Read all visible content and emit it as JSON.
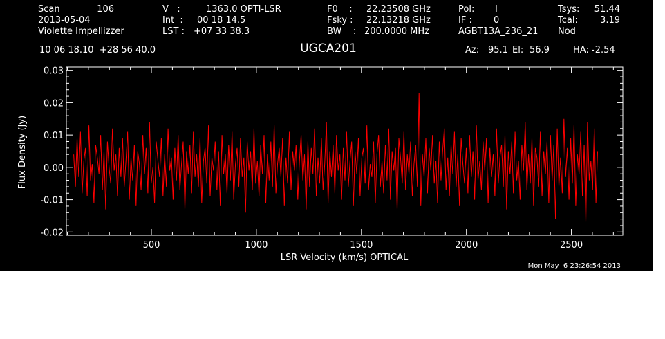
{
  "header": {
    "scan_label": "Scan",
    "scan_value": "106",
    "date": "2013-05-04",
    "observer": "Violette Impellizzer",
    "v_label": "V   :",
    "v_value": "1363.0 OPTI-LSR",
    "int_label": "Int  :",
    "int_value": "00 18 14.5",
    "lst_label": "LST :",
    "lst_value": "+07 33 38.3",
    "f0_label": "F0    :",
    "f0_value": "22.23508 GHz",
    "fsky_label": "Fsky :",
    "fsky_value": "22.13218 GHz",
    "bw_label": "BW    :",
    "bw_value": "200.0000 MHz",
    "pol_label": "Pol:",
    "pol_value": "I",
    "if_label": "IF :",
    "if_value": "0",
    "project": "AGBT13A_236_21",
    "tsys_label": "Tsys:",
    "tsys_value": "51.44",
    "tcal_label": "Tcal:",
    "tcal_value": "3.19",
    "mode": "Nod",
    "coords": "10 06 18.10  +28 56 40.0",
    "az_label": "Az:",
    "az_value": "95.1",
    "el_label": "El:",
    "el_value": "56.9",
    "ha_label": "HA:",
    "ha_value": "-2.54",
    "timestamp": "Mon May  6 23:26:54 2013"
  },
  "chart_data": {
    "type": "line",
    "title": "UGCA201",
    "xlabel": "LSR Velocity (km/s) OPTICAL",
    "ylabel": "Flux Density (Jy)",
    "xlim": [
      95,
      2745
    ],
    "ylim": [
      -0.021,
      0.031
    ],
    "x_ticks": [
      500,
      1000,
      1500,
      2000,
      2500
    ],
    "x_tick_labels": [
      "500",
      "1000",
      "1500",
      "2000",
      "2500"
    ],
    "y_ticks": [
      -0.02,
      -0.01,
      0.0,
      0.01,
      0.02,
      0.03
    ],
    "y_tick_labels": [
      "-0.02",
      "-0.01",
      "0.00",
      "0.01",
      "0.02",
      "0.03"
    ],
    "series": [
      {
        "color": "#ff0000",
        "x_start": 130,
        "x_end": 2625,
        "values": [
          0.004,
          -0.006,
          0.009,
          -0.003,
          0.011,
          -0.008,
          0.002,
          0.006,
          -0.009,
          0.013,
          -0.004,
          0.001,
          -0.011,
          0.007,
          0.003,
          -0.002,
          0.01,
          -0.007,
          0.005,
          -0.013,
          0.008,
          0.0,
          -0.005,
          0.012,
          -0.001,
          0.004,
          -0.009,
          0.006,
          -0.003,
          0.009,
          -0.006,
          0.002,
          0.011,
          -0.01,
          0.003,
          -0.004,
          0.007,
          -0.012,
          0.005,
          0.001,
          -0.007,
          0.01,
          -0.002,
          0.006,
          -0.008,
          0.014,
          -0.005,
          0.0,
          -0.011,
          0.008,
          0.002,
          -0.003,
          0.009,
          -0.009,
          0.004,
          -0.006,
          0.012,
          -0.001,
          0.003,
          -0.01,
          0.006,
          -0.004,
          0.01,
          -0.007,
          0.001,
          0.008,
          -0.013,
          0.005,
          -0.002,
          0.007,
          -0.008,
          0.011,
          -0.003,
          0.004,
          -0.006,
          0.009,
          -0.011,
          0.002,
          0.006,
          -0.005,
          0.013,
          -0.009,
          0.003,
          -0.001,
          0.008,
          -0.007,
          0.005,
          -0.012,
          0.01,
          -0.002,
          0.004,
          -0.008,
          0.007,
          -0.004,
          0.011,
          -0.01,
          0.001,
          0.006,
          -0.006,
          0.009,
          -0.003,
          0.003,
          -0.014,
          0.008,
          -0.001,
          0.005,
          -0.007,
          0.012,
          -0.005,
          0.002,
          -0.009,
          0.007,
          -0.002,
          0.01,
          -0.011,
          0.004,
          -0.004,
          0.008,
          -0.006,
          0.013,
          -0.008,
          0.001,
          0.006,
          -0.003,
          0.009,
          -0.012,
          0.003,
          -0.005,
          0.011,
          -0.007,
          0.005,
          -0.001,
          0.007,
          -0.01,
          0.002,
          0.01,
          -0.004,
          0.004,
          -0.013,
          0.008,
          -0.006,
          0.006,
          -0.002,
          0.012,
          -0.009,
          0.003,
          -0.005,
          0.009,
          -0.007,
          0.001,
          0.014,
          -0.011,
          0.005,
          -0.003,
          0.007,
          -0.008,
          0.01,
          -0.001,
          0.004,
          -0.01,
          0.006,
          -0.004,
          0.011,
          -0.006,
          0.002,
          0.008,
          -0.012,
          0.005,
          -0.002,
          0.009,
          -0.009,
          0.003,
          0.006,
          -0.005,
          0.013,
          -0.007,
          0.001,
          -0.003,
          0.008,
          -0.011,
          0.004,
          0.01,
          -0.006,
          0.002,
          -0.008,
          0.007,
          -0.004,
          0.012,
          -0.01,
          0.005,
          -0.001,
          0.006,
          -0.013,
          0.009,
          0.003,
          -0.005,
          0.011,
          -0.007,
          0.004,
          -0.002,
          0.008,
          -0.009,
          0.001,
          0.007,
          -0.006,
          0.023,
          -0.012,
          0.004,
          -0.003,
          0.009,
          -0.008,
          0.006,
          -0.001,
          0.01,
          -0.005,
          0.002,
          -0.011,
          0.008,
          -0.004,
          0.005,
          0.012,
          -0.007,
          0.003,
          -0.009,
          0.007,
          -0.002,
          0.011,
          -0.006,
          0.004,
          -0.012,
          0.009,
          0.001,
          -0.005,
          0.006,
          -0.008,
          0.01,
          -0.003,
          0.005,
          -0.01,
          0.013,
          -0.004,
          0.002,
          -0.007,
          0.008,
          -0.001,
          0.009,
          -0.011,
          0.006,
          -0.003,
          0.004,
          -0.009,
          0.012,
          -0.005,
          0.003,
          0.007,
          -0.006,
          0.01,
          -0.013,
          0.005,
          -0.002,
          0.008,
          -0.008,
          0.011,
          -0.004,
          0.002,
          -0.01,
          0.007,
          -0.001,
          0.014,
          -0.007,
          0.004,
          -0.005,
          0.009,
          -0.012,
          0.006,
          0.003,
          -0.006,
          0.011,
          -0.009,
          0.005,
          -0.002,
          0.008,
          -0.011,
          0.01,
          -0.004,
          0.007,
          -0.016,
          0.012,
          -0.006,
          0.003,
          -0.008,
          0.015,
          -0.003,
          0.006,
          -0.01,
          0.009,
          -0.005,
          0.013,
          -0.012,
          0.004,
          -0.002,
          0.011,
          -0.009,
          0.007,
          -0.017,
          0.014,
          -0.004,
          0.002,
          -0.007,
          0.012,
          -0.011,
          0.005
        ]
      }
    ]
  }
}
